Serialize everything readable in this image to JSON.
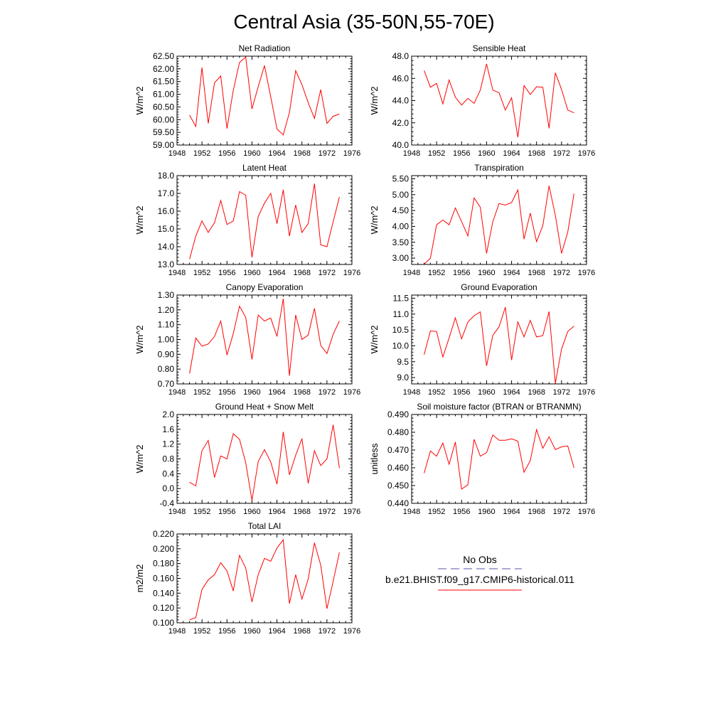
{
  "title": "Central Asia (35-50N,55-70E)",
  "legend": {
    "obs_label": "No Obs",
    "obs_color": "#5555aa",
    "model_label": "b.e21.BHIST.f09_g17.CMIP6-historical.011",
    "model_color": "#ff0000"
  },
  "chart_data": [
    {
      "type": "line",
      "title": "Net Radiation",
      "ylabel": "W/m^2",
      "xlim": [
        1948,
        1976
      ],
      "ylim": [
        59.0,
        62.5
      ],
      "xticks": [
        "1948",
        "1952",
        "1956",
        "1960",
        "1964",
        "1968",
        "1972",
        "1976"
      ],
      "yticks": [
        "59.00",
        "59.50",
        "60.00",
        "60.50",
        "61.00",
        "61.50",
        "62.00",
        "62.50"
      ],
      "series": [
        {
          "x": [
            1950,
            1951,
            1952,
            1953,
            1954,
            1955,
            1956,
            1957,
            1958,
            1959,
            1960,
            1961,
            1962,
            1963,
            1964,
            1965,
            1966,
            1967,
            1968,
            1969,
            1970,
            1971,
            1972,
            1973,
            1974
          ],
          "values": [
            60.18,
            59.73,
            62.05,
            59.85,
            61.45,
            61.72,
            59.65,
            61.15,
            62.25,
            62.47,
            60.42,
            61.3,
            62.13,
            60.9,
            59.63,
            59.4,
            60.28,
            61.93,
            61.38,
            60.67,
            60.05,
            61.18,
            59.85,
            60.13,
            60.22
          ]
        }
      ]
    },
    {
      "type": "line",
      "title": "Sensible Heat",
      "ylabel": "W/m^2",
      "xlim": [
        1948,
        1976
      ],
      "ylim": [
        40.0,
        48.0
      ],
      "xticks": [
        "1948",
        "1952",
        "1956",
        "1960",
        "1964",
        "1968",
        "1972",
        "1976"
      ],
      "yticks": [
        "40.0",
        "42.0",
        "44.0",
        "46.0",
        "48.0"
      ],
      "series": [
        {
          "x": [
            1950,
            1951,
            1952,
            1953,
            1954,
            1955,
            1956,
            1957,
            1958,
            1959,
            1960,
            1961,
            1962,
            1963,
            1964,
            1965,
            1966,
            1967,
            1968,
            1969,
            1970,
            1971,
            1972,
            1973,
            1974
          ],
          "values": [
            46.7,
            45.2,
            45.55,
            43.7,
            45.85,
            44.3,
            43.6,
            44.2,
            43.75,
            44.95,
            47.3,
            44.95,
            44.7,
            43.15,
            44.25,
            40.7,
            45.35,
            44.55,
            45.25,
            45.2,
            41.5,
            46.5,
            45.0,
            43.15,
            42.9
          ]
        }
      ]
    },
    {
      "type": "line",
      "title": "Latent Heat",
      "ylabel": "W/m^2",
      "xlim": [
        1948,
        1976
      ],
      "ylim": [
        13.0,
        18.0
      ],
      "xticks": [
        "1948",
        "1952",
        "1956",
        "1960",
        "1964",
        "1968",
        "1972",
        "1976"
      ],
      "yticks": [
        "13.0",
        "14.0",
        "15.0",
        "16.0",
        "17.0",
        "18.0"
      ],
      "series": [
        {
          "x": [
            1950,
            1951,
            1952,
            1953,
            1954,
            1955,
            1956,
            1957,
            1958,
            1959,
            1960,
            1961,
            1962,
            1963,
            1964,
            1965,
            1966,
            1967,
            1968,
            1969,
            1970,
            1971,
            1972,
            1973,
            1974
          ],
          "values": [
            13.3,
            14.6,
            15.45,
            14.8,
            15.35,
            16.6,
            15.25,
            15.45,
            17.1,
            16.9,
            13.4,
            15.7,
            16.45,
            17.0,
            15.3,
            17.2,
            14.6,
            16.35,
            14.8,
            15.3,
            17.55,
            14.1,
            14.0,
            15.4,
            16.8
          ]
        }
      ]
    },
    {
      "type": "line",
      "title": "Transpiration",
      "ylabel": "W/m^2",
      "xlim": [
        1948,
        1976
      ],
      "ylim": [
        2.8,
        5.6
      ],
      "xticks": [
        "1948",
        "1952",
        "1956",
        "1960",
        "1964",
        "1968",
        "1972",
        "1976"
      ],
      "yticks": [
        "3.00",
        "3.50",
        "4.00",
        "4.50",
        "5.00",
        "5.50"
      ],
      "series": [
        {
          "x": [
            1950,
            1951,
            1952,
            1953,
            1954,
            1955,
            1956,
            1957,
            1958,
            1959,
            1960,
            1961,
            1962,
            1963,
            1964,
            1965,
            1966,
            1967,
            1968,
            1969,
            1970,
            1971,
            1972,
            1973,
            1974
          ],
          "values": [
            2.81,
            3.0,
            4.05,
            4.2,
            4.05,
            4.58,
            4.15,
            3.7,
            4.9,
            4.6,
            3.15,
            4.15,
            4.72,
            4.67,
            4.75,
            5.15,
            3.6,
            4.42,
            3.52,
            4.02,
            5.28,
            4.35,
            3.15,
            3.82,
            5.03
          ]
        }
      ]
    },
    {
      "type": "line",
      "title": "Canopy Evaporation",
      "ylabel": "W/m^2",
      "xlim": [
        1948,
        1976
      ],
      "ylim": [
        0.7,
        1.3
      ],
      "xticks": [
        "1948",
        "1952",
        "1956",
        "1960",
        "1964",
        "1968",
        "1972",
        "1976"
      ],
      "yticks": [
        "0.70",
        "0.80",
        "0.90",
        "1.00",
        "1.10",
        "1.20",
        "1.30"
      ],
      "series": [
        {
          "x": [
            1950,
            1951,
            1952,
            1953,
            1954,
            1955,
            1956,
            1957,
            1958,
            1959,
            1960,
            1961,
            1962,
            1963,
            1964,
            1965,
            1966,
            1967,
            1968,
            1969,
            1970,
            1971,
            1972,
            1973,
            1974
          ],
          "values": [
            0.77,
            1.01,
            0.955,
            0.97,
            1.02,
            1.125,
            0.895,
            1.04,
            1.225,
            1.15,
            0.865,
            1.165,
            1.125,
            1.145,
            1.02,
            1.275,
            0.755,
            1.165,
            1.0,
            1.03,
            1.21,
            0.96,
            0.905,
            1.035,
            1.125
          ]
        }
      ]
    },
    {
      "type": "line",
      "title": "Ground Evaporation",
      "ylabel": "W/m^2",
      "xlim": [
        1948,
        1976
      ],
      "ylim": [
        8.8,
        11.6
      ],
      "xticks": [
        "1948",
        "1952",
        "1956",
        "1960",
        "1964",
        "1968",
        "1972",
        "1976"
      ],
      "yticks": [
        "9.0",
        "9.5",
        "10.0",
        "10.5",
        "11.0",
        "11.5"
      ],
      "series": [
        {
          "x": [
            1950,
            1951,
            1952,
            1953,
            1954,
            1955,
            1956,
            1957,
            1958,
            1959,
            1960,
            1961,
            1962,
            1963,
            1964,
            1965,
            1966,
            1967,
            1968,
            1969,
            1970,
            1971,
            1972,
            1973,
            1974
          ],
          "values": [
            9.72,
            10.47,
            10.45,
            9.65,
            10.25,
            10.88,
            10.22,
            10.75,
            10.95,
            11.07,
            9.37,
            10.33,
            10.6,
            11.22,
            9.55,
            10.75,
            10.28,
            10.8,
            10.28,
            10.32,
            11.08,
            8.82,
            9.9,
            10.45,
            10.62
          ]
        }
      ]
    },
    {
      "type": "line",
      "title": "Ground Heat + Snow Melt",
      "ylabel": "W/m^2",
      "xlim": [
        1948,
        1976
      ],
      "ylim": [
        -0.4,
        2.0
      ],
      "xticks": [
        "1948",
        "1952",
        "1956",
        "1960",
        "1964",
        "1968",
        "1972",
        "1976"
      ],
      "yticks": [
        "-0.4",
        "0.0",
        "0.4",
        "0.8",
        "1.2",
        "1.6",
        "2.0"
      ],
      "series": [
        {
          "x": [
            1950,
            1951,
            1952,
            1953,
            1954,
            1955,
            1956,
            1957,
            1958,
            1959,
            1960,
            1961,
            1962,
            1963,
            1964,
            1965,
            1966,
            1967,
            1968,
            1969,
            1970,
            1971,
            1972,
            1973,
            1974
          ],
          "values": [
            0.17,
            0.07,
            1.02,
            1.3,
            0.3,
            0.88,
            0.8,
            1.48,
            1.33,
            0.7,
            -0.32,
            0.73,
            1.05,
            0.72,
            0.12,
            1.53,
            0.37,
            0.9,
            1.35,
            0.14,
            1.02,
            0.62,
            0.8,
            1.72,
            0.55
          ]
        }
      ]
    },
    {
      "type": "line",
      "title": "Soil moisture factor (BTRAN or BTRANMN)",
      "ylabel": "unitless",
      "xlim": [
        1948,
        1976
      ],
      "ylim": [
        0.44,
        0.49
      ],
      "xticks": [
        "1948",
        "1952",
        "1956",
        "1960",
        "1964",
        "1968",
        "1972",
        "1976"
      ],
      "yticks": [
        "0.440",
        "0.450",
        "0.460",
        "0.470",
        "0.480",
        "0.490"
      ],
      "series": [
        {
          "x": [
            1950,
            1951,
            1952,
            1953,
            1954,
            1955,
            1956,
            1957,
            1958,
            1959,
            1960,
            1961,
            1962,
            1963,
            1964,
            1965,
            1966,
            1967,
            1968,
            1969,
            1970,
            1971,
            1972,
            1973,
            1974
          ],
          "values": [
            0.457,
            0.4695,
            0.4665,
            0.474,
            0.462,
            0.4745,
            0.448,
            0.4505,
            0.476,
            0.4665,
            0.4685,
            0.4785,
            0.4755,
            0.4755,
            0.4763,
            0.475,
            0.4575,
            0.464,
            0.4815,
            0.471,
            0.4775,
            0.4703,
            0.4718,
            0.4723,
            0.46
          ]
        }
      ]
    },
    {
      "type": "line",
      "title": "Total LAI",
      "ylabel": "m2/m2",
      "xlim": [
        1948,
        1976
      ],
      "ylim": [
        0.1,
        0.22
      ],
      "xticks": [
        "1948",
        "1952",
        "1956",
        "1960",
        "1964",
        "1968",
        "1972",
        "1976"
      ],
      "yticks": [
        "0.100",
        "0.120",
        "0.140",
        "0.160",
        "0.180",
        "0.200",
        "0.220"
      ],
      "series": [
        {
          "x": [
            1950,
            1951,
            1952,
            1953,
            1954,
            1955,
            1956,
            1957,
            1958,
            1959,
            1960,
            1961,
            1962,
            1963,
            1964,
            1965,
            1966,
            1967,
            1968,
            1969,
            1970,
            1971,
            1972,
            1973,
            1974
          ],
          "values": [
            0.104,
            0.107,
            0.145,
            0.158,
            0.165,
            0.181,
            0.17,
            0.143,
            0.191,
            0.174,
            0.128,
            0.165,
            0.187,
            0.183,
            0.201,
            0.212,
            0.126,
            0.165,
            0.132,
            0.159,
            0.208,
            0.178,
            0.119,
            0.156,
            0.195
          ]
        }
      ]
    }
  ]
}
